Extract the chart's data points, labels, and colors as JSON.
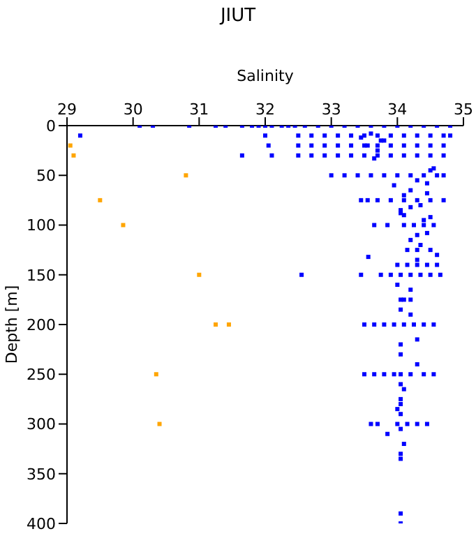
{
  "chart_data": {
    "type": "scatter",
    "title": "JIUT",
    "xlabel": "Salinity",
    "ylabel": "Depth [m]",
    "xlim": [
      29,
      35
    ],
    "xticks": [
      29,
      30,
      31,
      32,
      33,
      34,
      35
    ],
    "ylim": [
      400,
      0
    ],
    "yticks": [
      0,
      50,
      100,
      150,
      200,
      250,
      300,
      350,
      400
    ],
    "marker": "square",
    "grid": false,
    "legend": false,
    "series": [
      {
        "color": "#0000ff",
        "x": [
          30.1,
          30.3,
          30.85,
          31.25,
          31.4,
          31.65,
          31.8,
          31.9,
          32.0,
          32.1,
          32.25,
          32.35,
          32.45,
          32.6,
          32.8,
          33.0,
          33.2,
          33.4,
          33.6,
          33.8,
          34.0,
          34.2,
          34.4,
          34.6,
          34.8,
          29.2,
          32.0,
          32.5,
          32.7,
          32.9,
          33.1,
          33.3,
          33.5,
          33.7,
          33.9,
          34.1,
          34.3,
          34.5,
          34.7,
          34.8,
          32.05,
          32.5,
          32.7,
          32.9,
          33.1,
          33.3,
          33.5,
          33.7,
          33.9,
          34.1,
          34.3,
          34.5,
          34.7,
          31.65,
          32.1,
          32.5,
          32.7,
          32.9,
          33.1,
          33.3,
          33.5,
          33.7,
          33.9,
          34.1,
          34.3,
          34.5,
          34.7,
          33.45,
          33.6,
          33.75,
          33.55,
          33.7,
          33.65,
          33.8,
          34.5,
          34.55,
          33.0,
          33.2,
          33.4,
          33.6,
          33.8,
          34.0,
          34.2,
          34.4,
          34.6,
          34.7,
          33.95,
          34.3,
          34.1,
          34.2,
          34.05,
          34.35,
          34.45,
          33.45,
          33.55,
          33.7,
          33.9,
          34.1,
          34.3,
          34.5,
          34.7,
          34.1,
          34.4,
          34.05,
          34.5,
          34.2,
          34.45,
          33.65,
          33.85,
          34.1,
          34.25,
          34.4,
          34.55,
          34.3,
          34.45,
          34.2,
          34.35,
          34.15,
          34.3,
          34.5,
          34.0,
          34.15,
          34.3,
          34.45,
          34.6,
          33.56,
          34.3,
          34.6,
          32.55,
          33.45,
          33.75,
          33.9,
          34.05,
          34.2,
          34.35,
          34.5,
          34.65,
          34.0,
          34.2,
          34.1,
          34.05,
          34.2,
          34.05,
          34.2,
          33.5,
          33.65,
          33.8,
          33.95,
          34.1,
          34.25,
          34.4,
          34.55,
          34.05,
          34.3,
          34.05,
          34.3,
          33.5,
          33.65,
          33.8,
          33.95,
          34.05,
          34.2,
          34.4,
          34.55,
          34.05,
          34.1,
          34.05,
          34.05,
          34.0,
          34.05,
          33.6,
          33.7,
          34.0,
          34.15,
          34.3,
          34.45,
          33.85,
          34.05,
          34.1,
          34.05,
          34.05,
          34.05,
          34.05
        ],
        "values": [
          0,
          0,
          0,
          0,
          0,
          0,
          0,
          0,
          0,
          0,
          0,
          0,
          0,
          0,
          0,
          0,
          0,
          0,
          0,
          0,
          0,
          0,
          0,
          0,
          0,
          10,
          10,
          10,
          10,
          10,
          10,
          10,
          10,
          10,
          10,
          10,
          10,
          10,
          10,
          10,
          20,
          20,
          20,
          20,
          20,
          20,
          20,
          20,
          20,
          20,
          20,
          20,
          20,
          30,
          30,
          30,
          30,
          30,
          30,
          30,
          30,
          30,
          30,
          30,
          30,
          30,
          30,
          12,
          8,
          15,
          20,
          25,
          33,
          15,
          45,
          43,
          50,
          50,
          50,
          50,
          50,
          50,
          50,
          50,
          50,
          50,
          60,
          55,
          70,
          65,
          85,
          80,
          58,
          75,
          75,
          75,
          75,
          75,
          75,
          75,
          75,
          90,
          95,
          88,
          92,
          82,
          68,
          100,
          100,
          100,
          100,
          100,
          100,
          110,
          108,
          115,
          120,
          125,
          125,
          125,
          140,
          140,
          140,
          140,
          140,
          132,
          135,
          130,
          150,
          150,
          150,
          150,
          150,
          150,
          150,
          150,
          150,
          160,
          165,
          175,
          175,
          175,
          185,
          190,
          200,
          200,
          200,
          200,
          200,
          200,
          200,
          200,
          220,
          215,
          230,
          240,
          250,
          250,
          250,
          250,
          250,
          250,
          250,
          250,
          260,
          265,
          280,
          290,
          285,
          275,
          300,
          300,
          300,
          300,
          300,
          300,
          310,
          305,
          320,
          330,
          335,
          390,
          400
        ]
      },
      {
        "color": "#ffa500",
        "x": [
          29.05,
          29.1,
          30.8,
          29.5,
          29.85,
          31.0,
          31.25,
          31.45,
          30.35,
          30.4
        ],
        "values": [
          20,
          30,
          50,
          75,
          100,
          150,
          200,
          200,
          250,
          300
        ]
      }
    ]
  }
}
